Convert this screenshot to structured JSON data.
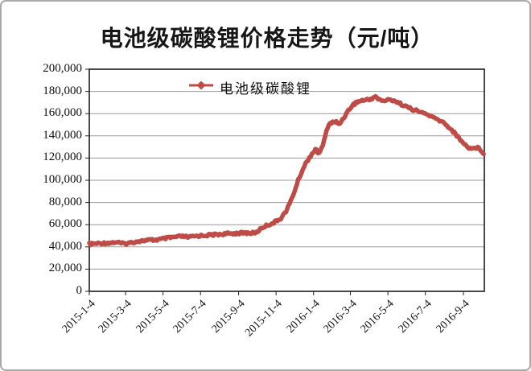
{
  "chart_data": {
    "type": "line",
    "title": "电池级碳酸锂价格走势（元/吨）",
    "legend": {
      "position": "top-center-inside"
    },
    "x_range": [
      "2015-1-4",
      "2016-10-8"
    ],
    "x_tick_labels": [
      "2015-1-4",
      "2015-3-4",
      "2015-5-4",
      "2015-7-4",
      "2015-9-4",
      "2015-11-4",
      "2016-1-4",
      "2016-3-4",
      "2016-5-4",
      "2016-7-4",
      "2016-9-4"
    ],
    "y_tick_labels": [
      "0",
      "20,000",
      "40,000",
      "60,000",
      "80,000",
      "100,000",
      "120,000",
      "140,000",
      "160,000",
      "180,000",
      "200,000"
    ],
    "y_tick_values": [
      0,
      20000,
      40000,
      60000,
      80000,
      100000,
      120000,
      140000,
      160000,
      180000,
      200000
    ],
    "ylim": [
      0,
      200000
    ],
    "grid": "horizontal",
    "series": [
      {
        "name": "电池级碳酸锂",
        "color": "#bf4b47",
        "marker": "diamond",
        "points": [
          [
            "2015-01-04",
            42500
          ],
          [
            "2015-01-20",
            43200
          ],
          [
            "2015-02-10",
            43800
          ],
          [
            "2015-02-17",
            44300
          ],
          [
            "2015-02-28",
            42800
          ],
          [
            "2015-03-10",
            43500
          ],
          [
            "2015-03-25",
            45200
          ],
          [
            "2015-04-10",
            46000
          ],
          [
            "2015-04-25",
            46500
          ],
          [
            "2015-05-10",
            47800
          ],
          [
            "2015-05-25",
            49000
          ],
          [
            "2015-06-05",
            49500
          ],
          [
            "2015-06-15",
            48700
          ],
          [
            "2015-06-30",
            50000
          ],
          [
            "2015-07-15",
            50500
          ],
          [
            "2015-07-31",
            51200
          ],
          [
            "2015-08-15",
            51800
          ],
          [
            "2015-08-31",
            52300
          ],
          [
            "2015-09-15",
            52600
          ],
          [
            "2015-09-25",
            52400
          ],
          [
            "2015-10-03",
            53000
          ],
          [
            "2015-10-10",
            56500
          ],
          [
            "2015-10-20",
            59500
          ],
          [
            "2015-10-28",
            61000
          ],
          [
            "2015-11-04",
            63000
          ],
          [
            "2015-11-12",
            66000
          ],
          [
            "2015-11-20",
            72000
          ],
          [
            "2015-11-27",
            80000
          ],
          [
            "2015-12-04",
            90000
          ],
          [
            "2015-12-10",
            100000
          ],
          [
            "2015-12-16",
            108000
          ],
          [
            "2015-12-22",
            115000
          ],
          [
            "2015-12-29",
            121000
          ],
          [
            "2016-01-04",
            126000
          ],
          [
            "2016-01-08",
            127500
          ],
          [
            "2016-01-12",
            124500
          ],
          [
            "2016-01-16",
            127000
          ],
          [
            "2016-01-20",
            133000
          ],
          [
            "2016-01-24",
            142000
          ],
          [
            "2016-01-28",
            150000
          ],
          [
            "2016-02-03",
            152000
          ],
          [
            "2016-02-10",
            152500
          ],
          [
            "2016-02-14",
            150500
          ],
          [
            "2016-02-18",
            153000
          ],
          [
            "2016-02-24",
            158000
          ],
          [
            "2016-03-01",
            163000
          ],
          [
            "2016-03-08",
            168000
          ],
          [
            "2016-03-15",
            170500
          ],
          [
            "2016-03-24",
            172000
          ],
          [
            "2016-04-02",
            172500
          ],
          [
            "2016-04-08",
            173500
          ],
          [
            "2016-04-13",
            176000
          ],
          [
            "2016-04-18",
            173000
          ],
          [
            "2016-04-26",
            171500
          ],
          [
            "2016-05-06",
            172500
          ],
          [
            "2016-05-14",
            172000
          ],
          [
            "2016-05-22",
            169500
          ],
          [
            "2016-06-01",
            167000
          ],
          [
            "2016-06-10",
            164500
          ],
          [
            "2016-06-20",
            162500
          ],
          [
            "2016-07-01",
            160500
          ],
          [
            "2016-07-10",
            158500
          ],
          [
            "2016-07-20",
            155500
          ],
          [
            "2016-08-01",
            152500
          ],
          [
            "2016-08-10",
            148500
          ],
          [
            "2016-08-18",
            144000
          ],
          [
            "2016-08-26",
            139000
          ],
          [
            "2016-09-04",
            133500
          ],
          [
            "2016-09-10",
            130000
          ],
          [
            "2016-09-18",
            128500
          ],
          [
            "2016-09-26",
            129500
          ],
          [
            "2016-10-01",
            128000
          ],
          [
            "2016-10-05",
            125500
          ],
          [
            "2016-10-08",
            124000
          ]
        ]
      }
    ]
  }
}
